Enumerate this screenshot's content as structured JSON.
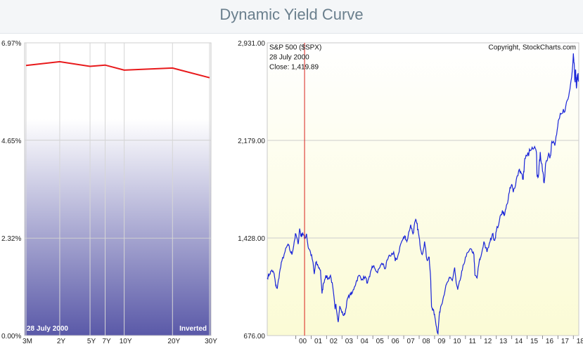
{
  "page_title": "Dynamic Yield Curve",
  "chart_data": [
    {
      "type": "line",
      "name": "yield-curve",
      "categories": [
        "3M",
        "2Y",
        "5Y",
        "7Y",
        "10Y",
        "20Y",
        "30Y"
      ],
      "x_positions_years": [
        0.25,
        2,
        5,
        7,
        10,
        20,
        30
      ],
      "values": [
        6.43,
        6.52,
        6.41,
        6.44,
        6.32,
        6.37,
        6.14
      ],
      "ylim": [
        0.0,
        6.97
      ],
      "yticks": [
        "6.97%",
        "4.65%",
        "2.32%",
        "0.00%"
      ],
      "ytick_values": [
        6.97,
        4.65,
        2.32,
        0.0
      ],
      "date_label": "28  July 2000",
      "status_label": "Inverted",
      "line_color": "#e8191b",
      "fill_color_top": "#ffffff",
      "fill_color_bottom": "#5a59a8",
      "grid": true
    },
    {
      "type": "line",
      "name": "sp500",
      "title": "S&P 500 ($SPX)",
      "copyright": "Copyright, StockCharts.com",
      "marker_label_date": "28  July 2000",
      "marker_label_close": "Close: 1,419.89",
      "marker_year": 2000.57,
      "yticks": [
        "2,931.00",
        "2,179.00",
        "1,428.00",
        "676.00"
      ],
      "ytick_values": [
        2931,
        2179,
        1428,
        676
      ],
      "ylim": [
        676,
        2931
      ],
      "xtick_labels": [
        "00",
        "01",
        "02",
        "03",
        "04",
        "05",
        "06",
        "07",
        "08",
        "09",
        "10",
        "11",
        "12",
        "13",
        "14",
        "15",
        "16",
        "17",
        "18"
      ],
      "xtick_years": [
        2000,
        2001,
        2002,
        2003,
        2004,
        2005,
        2006,
        2007,
        2008,
        2009,
        2010,
        2011,
        2012,
        2013,
        2014,
        2015,
        2016,
        2017,
        2018
      ],
      "xlim": [
        1998.15,
        2018.35
      ],
      "line_color": "#1a25d8",
      "marker_color": "#d9211c",
      "background_top": "#ffffff",
      "background_bottom": "#fbfbd5",
      "points": [
        [
          1998.15,
          1120
        ],
        [
          1998.3,
          1150
        ],
        [
          1998.45,
          1180
        ],
        [
          1998.6,
          1150
        ],
        [
          1998.7,
          1060
        ],
        [
          1998.8,
          1040
        ],
        [
          1998.95,
          1160
        ],
        [
          1999.1,
          1250
        ],
        [
          1999.3,
          1320
        ],
        [
          1999.5,
          1380
        ],
        [
          1999.6,
          1340
        ],
        [
          1999.75,
          1300
        ],
        [
          1999.9,
          1400
        ],
        [
          2000.0,
          1460
        ],
        [
          2000.15,
          1380
        ],
        [
          2000.25,
          1500
        ],
        [
          2000.35,
          1440
        ],
        [
          2000.45,
          1470
        ],
        [
          2000.57,
          1420
        ],
        [
          2000.7,
          1460
        ],
        [
          2000.8,
          1360
        ],
        [
          2000.95,
          1320
        ],
        [
          2001.1,
          1250
        ],
        [
          2001.2,
          1150
        ],
        [
          2001.3,
          1240
        ],
        [
          2001.45,
          1210
        ],
        [
          2001.6,
          1180
        ],
        [
          2001.7,
          1000
        ],
        [
          2001.8,
          1080
        ],
        [
          2001.95,
          1140
        ],
        [
          2002.1,
          1110
        ],
        [
          2002.25,
          1140
        ],
        [
          2002.4,
          1050
        ],
        [
          2002.55,
          880
        ],
        [
          2002.6,
          920
        ],
        [
          2002.75,
          780
        ],
        [
          2002.85,
          900
        ],
        [
          2002.95,
          870
        ],
        [
          2003.1,
          830
        ],
        [
          2003.2,
          850
        ],
        [
          2003.35,
          960
        ],
        [
          2003.5,
          990
        ],
        [
          2003.65,
          1000
        ],
        [
          2003.8,
          1050
        ],
        [
          2003.95,
          1100
        ],
        [
          2004.1,
          1140
        ],
        [
          2004.3,
          1110
        ],
        [
          2004.5,
          1130
        ],
        [
          2004.65,
          1080
        ],
        [
          2004.8,
          1130
        ],
        [
          2004.95,
          1210
        ],
        [
          2005.1,
          1200
        ],
        [
          2005.3,
          1160
        ],
        [
          2005.5,
          1220
        ],
        [
          2005.65,
          1230
        ],
        [
          2005.8,
          1190
        ],
        [
          2005.95,
          1260
        ],
        [
          2006.1,
          1290
        ],
        [
          2006.35,
          1320
        ],
        [
          2006.45,
          1250
        ],
        [
          2006.6,
          1280
        ],
        [
          2006.8,
          1380
        ],
        [
          2006.95,
          1420
        ],
        [
          2007.1,
          1440
        ],
        [
          2007.2,
          1400
        ],
        [
          2007.45,
          1530
        ],
        [
          2007.6,
          1460
        ],
        [
          2007.75,
          1560
        ],
        [
          2007.85,
          1540
        ],
        [
          2007.95,
          1470
        ],
        [
          2008.05,
          1380
        ],
        [
          2008.2,
          1300
        ],
        [
          2008.35,
          1400
        ],
        [
          2008.5,
          1260
        ],
        [
          2008.65,
          1280
        ],
        [
          2008.75,
          1100
        ],
        [
          2008.8,
          900
        ],
        [
          2008.88,
          880
        ],
        [
          2008.95,
          860
        ],
        [
          2009.05,
          800
        ],
        [
          2009.15,
          720
        ],
        [
          2009.22,
          690
        ],
        [
          2009.3,
          830
        ],
        [
          2009.4,
          900
        ],
        [
          2009.55,
          960
        ],
        [
          2009.7,
          1040
        ],
        [
          2009.85,
          1090
        ],
        [
          2010.0,
          1120
        ],
        [
          2010.15,
          1100
        ],
        [
          2010.3,
          1200
        ],
        [
          2010.4,
          1080
        ],
        [
          2010.5,
          1030
        ],
        [
          2010.65,
          1100
        ],
        [
          2010.8,
          1180
        ],
        [
          2011.0,
          1280
        ],
        [
          2011.2,
          1320
        ],
        [
          2011.4,
          1340
        ],
        [
          2011.55,
          1300
        ],
        [
          2011.62,
          1140
        ],
        [
          2011.75,
          1120
        ],
        [
          2011.9,
          1250
        ],
        [
          2012.0,
          1280
        ],
        [
          2012.2,
          1400
        ],
        [
          2012.4,
          1320
        ],
        [
          2012.6,
          1400
        ],
        [
          2012.75,
          1460
        ],
        [
          2012.9,
          1410
        ],
        [
          2013.0,
          1480
        ],
        [
          2013.2,
          1560
        ],
        [
          2013.4,
          1640
        ],
        [
          2013.55,
          1610
        ],
        [
          2013.7,
          1690
        ],
        [
          2013.85,
          1780
        ],
        [
          2014.0,
          1840
        ],
        [
          2014.1,
          1780
        ],
        [
          2014.3,
          1880
        ],
        [
          2014.5,
          1960
        ],
        [
          2014.6,
          1930
        ],
        [
          2014.75,
          1880
        ],
        [
          2014.85,
          2040
        ],
        [
          2015.0,
          2060
        ],
        [
          2015.2,
          2100
        ],
        [
          2015.45,
          2120
        ],
        [
          2015.6,
          2090
        ],
        [
          2015.65,
          1900
        ],
        [
          2015.75,
          1920
        ],
        [
          2015.85,
          2090
        ],
        [
          2016.0,
          1940
        ],
        [
          2016.1,
          1850
        ],
        [
          2016.2,
          2000
        ],
        [
          2016.4,
          2080
        ],
        [
          2016.5,
          2060
        ],
        [
          2016.6,
          2170
        ],
        [
          2016.8,
          2140
        ],
        [
          2016.95,
          2260
        ],
        [
          2017.1,
          2350
        ],
        [
          2017.3,
          2390
        ],
        [
          2017.5,
          2440
        ],
        [
          2017.7,
          2520
        ],
        [
          2017.85,
          2640
        ],
        [
          2018.0,
          2850
        ],
        [
          2018.05,
          2780
        ],
        [
          2018.1,
          2640
        ],
        [
          2018.15,
          2720
        ],
        [
          2018.2,
          2580
        ],
        [
          2018.28,
          2690
        ],
        [
          2018.33,
          2640
        ]
      ]
    }
  ]
}
